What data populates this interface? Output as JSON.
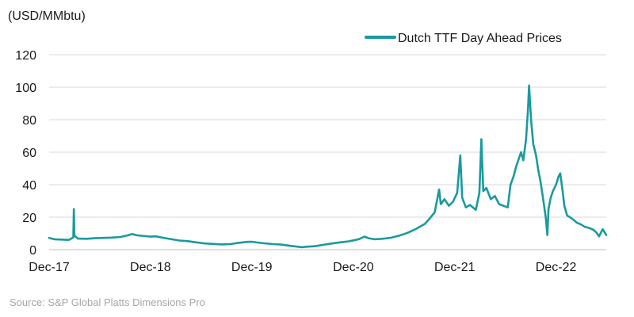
{
  "chart_data": {
    "type": "line",
    "unit_label": "(USD/MMbtu)",
    "source": "Source: S&P Global Platts Dimensions Pro",
    "ylim": [
      0,
      120
    ],
    "y_ticks": [
      "0",
      "20",
      "40",
      "60",
      "80",
      "100",
      "120"
    ],
    "y_tick_values": [
      0,
      20,
      40,
      60,
      80,
      100,
      120
    ],
    "xlim": [
      "2017-12-01",
      "2023-05-31"
    ],
    "x_ticks": [
      {
        "label": "Dec-17",
        "date": "2017-12-01"
      },
      {
        "label": "Dec-18",
        "date": "2018-12-01"
      },
      {
        "label": "Dec-19",
        "date": "2019-12-01"
      },
      {
        "label": "Dec-20",
        "date": "2020-12-01"
      },
      {
        "label": "Dec-21",
        "date": "2021-12-01"
      },
      {
        "label": "Dec-22",
        "date": "2022-12-01"
      }
    ],
    "grid": true,
    "legend_position": "top-right",
    "series": [
      {
        "name": "Dutch TTF Day Ahead Prices",
        "color": "#1a9a9e",
        "points": [
          [
            "2017-12-01",
            7.2
          ],
          [
            "2017-12-20",
            6.4
          ],
          [
            "2018-01-15",
            6.2
          ],
          [
            "2018-02-10",
            6.0
          ],
          [
            "2018-02-26",
            7.5
          ],
          [
            "2018-02-28",
            25.0
          ],
          [
            "2018-03-02",
            8.5
          ],
          [
            "2018-03-08",
            7.8
          ],
          [
            "2018-03-15",
            6.8
          ],
          [
            "2018-04-15",
            6.7
          ],
          [
            "2018-05-15",
            7.0
          ],
          [
            "2018-06-15",
            7.2
          ],
          [
            "2018-07-15",
            7.4
          ],
          [
            "2018-08-15",
            7.8
          ],
          [
            "2018-09-15",
            9.0
          ],
          [
            "2018-09-25",
            9.6
          ],
          [
            "2018-10-15",
            8.8
          ],
          [
            "2018-11-15",
            8.3
          ],
          [
            "2018-12-01",
            8.0
          ],
          [
            "2018-12-20",
            8.2
          ],
          [
            "2019-01-15",
            7.3
          ],
          [
            "2019-02-15",
            6.4
          ],
          [
            "2019-03-15",
            5.6
          ],
          [
            "2019-04-15",
            5.2
          ],
          [
            "2019-05-15",
            4.5
          ],
          [
            "2019-06-15",
            3.8
          ],
          [
            "2019-07-15",
            3.5
          ],
          [
            "2019-08-15",
            3.2
          ],
          [
            "2019-09-15",
            3.4
          ],
          [
            "2019-10-15",
            4.2
          ],
          [
            "2019-11-15",
            4.8
          ],
          [
            "2019-12-01",
            4.9
          ],
          [
            "2019-12-20",
            4.4
          ],
          [
            "2020-01-15",
            3.9
          ],
          [
            "2020-02-15",
            3.4
          ],
          [
            "2020-03-15",
            3.1
          ],
          [
            "2020-04-15",
            2.4
          ],
          [
            "2020-05-15",
            1.8
          ],
          [
            "2020-05-30",
            1.5
          ],
          [
            "2020-06-15",
            1.8
          ],
          [
            "2020-07-15",
            2.1
          ],
          [
            "2020-08-15",
            3.0
          ],
          [
            "2020-09-15",
            3.8
          ],
          [
            "2020-10-15",
            4.5
          ],
          [
            "2020-11-15",
            5.1
          ],
          [
            "2020-12-01",
            5.7
          ],
          [
            "2020-12-20",
            6.4
          ],
          [
            "2021-01-10",
            8.0
          ],
          [
            "2021-01-25",
            7.0
          ],
          [
            "2021-02-15",
            6.4
          ],
          [
            "2021-03-15",
            6.7
          ],
          [
            "2021-04-15",
            7.3
          ],
          [
            "2021-05-15",
            8.6
          ],
          [
            "2021-06-15",
            10.4
          ],
          [
            "2021-07-15",
            12.8
          ],
          [
            "2021-08-15",
            15.8
          ],
          [
            "2021-09-01",
            19.0
          ],
          [
            "2021-09-20",
            23.0
          ],
          [
            "2021-10-06",
            37.0
          ],
          [
            "2021-10-12",
            28.0
          ],
          [
            "2021-10-25",
            31.0
          ],
          [
            "2021-11-10",
            27.0
          ],
          [
            "2021-11-25",
            29.5
          ],
          [
            "2021-12-10",
            35.0
          ],
          [
            "2021-12-21",
            58.0
          ],
          [
            "2021-12-28",
            32.0
          ],
          [
            "2022-01-10",
            26.0
          ],
          [
            "2022-01-25",
            27.5
          ],
          [
            "2022-02-15",
            24.5
          ],
          [
            "2022-02-28",
            35.0
          ],
          [
            "2022-03-07",
            68.0
          ],
          [
            "2022-03-14",
            36.0
          ],
          [
            "2022-03-25",
            38.0
          ],
          [
            "2022-04-10",
            31.0
          ],
          [
            "2022-04-25",
            33.0
          ],
          [
            "2022-05-10",
            28.0
          ],
          [
            "2022-05-25",
            27.0
          ],
          [
            "2022-06-10",
            26.0
          ],
          [
            "2022-06-20",
            40.0
          ],
          [
            "2022-07-01",
            45.0
          ],
          [
            "2022-07-10",
            51.0
          ],
          [
            "2022-07-20",
            56.0
          ],
          [
            "2022-07-28",
            60.0
          ],
          [
            "2022-08-05",
            55.0
          ],
          [
            "2022-08-15",
            68.0
          ],
          [
            "2022-08-22",
            86.0
          ],
          [
            "2022-08-26",
            101.0
          ],
          [
            "2022-09-02",
            80.0
          ],
          [
            "2022-09-10",
            65.0
          ],
          [
            "2022-09-20",
            58.0
          ],
          [
            "2022-09-28",
            49.0
          ],
          [
            "2022-10-06",
            42.0
          ],
          [
            "2022-10-15",
            32.0
          ],
          [
            "2022-10-25",
            20.0
          ],
          [
            "2022-10-31",
            9.0
          ],
          [
            "2022-11-04",
            25.0
          ],
          [
            "2022-11-12",
            32.0
          ],
          [
            "2022-11-20",
            36.0
          ],
          [
            "2022-12-01",
            40.0
          ],
          [
            "2022-12-10",
            45.0
          ],
          [
            "2022-12-16",
            47.0
          ],
          [
            "2022-12-24",
            37.0
          ],
          [
            "2022-12-31",
            27.0
          ],
          [
            "2023-01-10",
            21.0
          ],
          [
            "2023-01-20",
            20.0
          ],
          [
            "2023-02-01",
            18.5
          ],
          [
            "2023-02-15",
            16.5
          ],
          [
            "2023-03-01",
            15.5
          ],
          [
            "2023-03-15",
            14.0
          ],
          [
            "2023-04-01",
            13.2
          ],
          [
            "2023-04-15",
            12.2
          ],
          [
            "2023-04-25",
            10.6
          ],
          [
            "2023-05-05",
            8.2
          ],
          [
            "2023-05-12",
            10.5
          ],
          [
            "2023-05-18",
            12.6
          ],
          [
            "2023-05-24",
            11.0
          ],
          [
            "2023-05-31",
            9.0
          ]
        ]
      }
    ]
  }
}
